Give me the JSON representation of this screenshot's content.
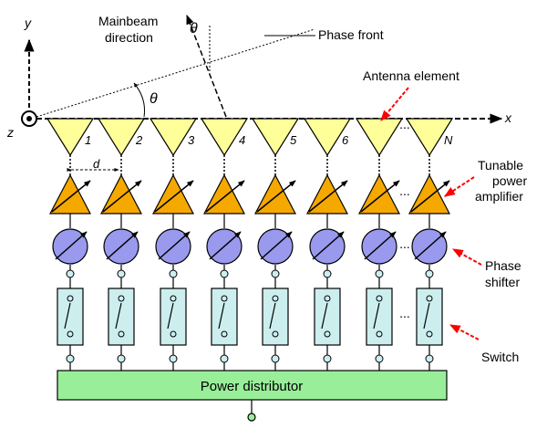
{
  "axes": {
    "y": "y",
    "x": "x",
    "z": "z"
  },
  "labels": {
    "mainbeam_line1": "Mainbeam",
    "mainbeam_line2": "direction",
    "phase_front": "Phase front",
    "theta": "θ",
    "antenna_element": "Antenna element",
    "amp_line1": "Tunable",
    "amp_line2": "power",
    "amp_line3": "amplifier",
    "phase_line1": "Phase",
    "phase_line2": "shifter",
    "switch": "Switch",
    "spacing": "d",
    "ellipsis": "...",
    "power_distributor": "Power distributor"
  },
  "elements": [
    "1",
    "2",
    "3",
    "4",
    "5",
    "6",
    "",
    "N"
  ],
  "colors": {
    "antenna": "#ffff99",
    "amplifier": "#f5a800",
    "phase_shifter": "#9999ee",
    "switch_box": "#cceeee",
    "distributor": "#99ee99",
    "node": "#cceeee",
    "bottom_node": "#99ee99",
    "callout_arrow": "#ff0000"
  }
}
